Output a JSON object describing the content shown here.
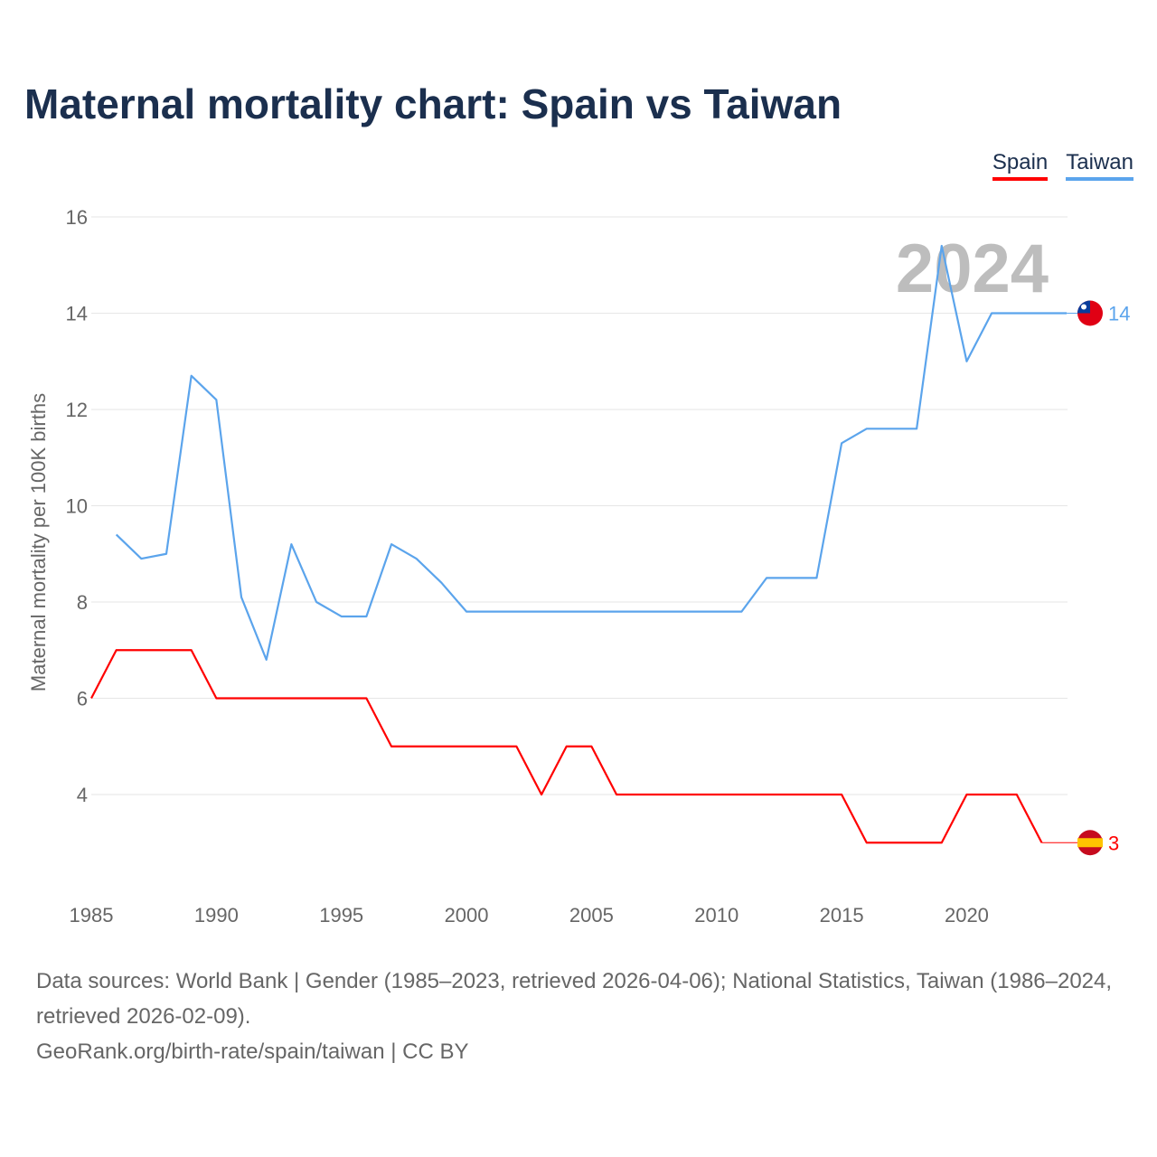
{
  "title": "Maternal mortality chart: Spain vs Taiwan",
  "legend": [
    {
      "label": "Spain",
      "color": "#ff0000"
    },
    {
      "label": "Taiwan",
      "color": "#5ba4ec"
    }
  ],
  "footer": {
    "line1": "Data sources: World Bank | Gender (1985–2023, retrieved 2026-04-06); National Statistics, Taiwan (1986–2024, retrieved 2026-02-09).",
    "line2": "GeoRank.org/birth-rate/spain/taiwan | CC BY"
  },
  "chart_data": {
    "type": "line",
    "title": "Maternal mortality chart: Spain vs Taiwan",
    "ylabel": "Maternal mortality per 100K births",
    "xlabel": "",
    "xlim": [
      1985,
      2024
    ],
    "ylim": [
      2,
      16
    ],
    "yticks": [
      "4",
      "6",
      "8",
      "10",
      "12",
      "14",
      "16"
    ],
    "xticks": [
      "1985",
      "1990",
      "1995",
      "2000",
      "2005",
      "2010",
      "2015",
      "2020"
    ],
    "year_label": "2024",
    "series": [
      {
        "name": "Spain",
        "color": "#ff0000",
        "end_label": "3",
        "flag": "spain-flag",
        "x": [
          1985,
          1986,
          1987,
          1988,
          1989,
          1990,
          1991,
          1992,
          1993,
          1994,
          1995,
          1996,
          1997,
          1998,
          1999,
          2000,
          2001,
          2002,
          2003,
          2004,
          2005,
          2006,
          2007,
          2008,
          2009,
          2010,
          2011,
          2012,
          2013,
          2014,
          2015,
          2016,
          2017,
          2018,
          2019,
          2020,
          2021,
          2022,
          2023
        ],
        "values": [
          6,
          7,
          7,
          7,
          7,
          6,
          6,
          6,
          6,
          6,
          6,
          6,
          5,
          5,
          5,
          5,
          5,
          5,
          4,
          5,
          5,
          4,
          4,
          4,
          4,
          4,
          4,
          4,
          4,
          4,
          4,
          3,
          3,
          3,
          3,
          4,
          4,
          4,
          3
        ]
      },
      {
        "name": "Taiwan",
        "color": "#5ba4ec",
        "end_label": "14",
        "flag": "taiwan-flag",
        "x": [
          1986,
          1987,
          1988,
          1989,
          1990,
          1991,
          1992,
          1993,
          1994,
          1995,
          1996,
          1997,
          1998,
          1999,
          2000,
          2001,
          2002,
          2003,
          2004,
          2005,
          2006,
          2007,
          2008,
          2009,
          2010,
          2011,
          2012,
          2013,
          2014,
          2015,
          2016,
          2017,
          2018,
          2019,
          2020,
          2021,
          2022,
          2023,
          2024
        ],
        "values": [
          9.4,
          8.9,
          9.0,
          12.7,
          12.2,
          8.1,
          6.8,
          9.2,
          8.0,
          7.7,
          7.7,
          9.2,
          8.9,
          8.4,
          7.8,
          7.8,
          7.8,
          7.8,
          7.8,
          7.8,
          7.8,
          7.8,
          7.8,
          7.8,
          7.8,
          7.8,
          8.5,
          8.5,
          8.5,
          11.3,
          11.6,
          11.6,
          11.6,
          15.4,
          13.0,
          14.0,
          14.0,
          14.0,
          14.0
        ]
      }
    ]
  }
}
